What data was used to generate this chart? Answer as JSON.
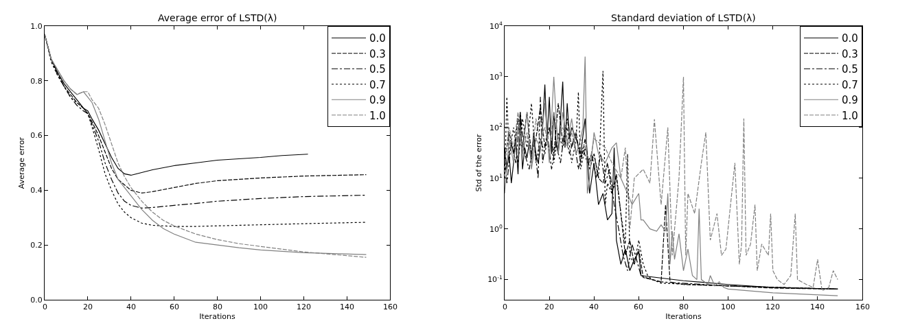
{
  "chart_data": [
    {
      "type": "line",
      "title": "Average error of LSTD(λ)",
      "xlabel": "Iterations",
      "ylabel": "Average error",
      "xlim": [
        0,
        160
      ],
      "xticks": [
        0,
        20,
        40,
        60,
        80,
        100,
        120,
        140,
        160
      ],
      "ylim": [
        0,
        1
      ],
      "yticks": [
        {
          "value": 0,
          "label": "0.0"
        },
        0.2,
        0.4,
        0.6,
        0.8,
        {
          "value": 1,
          "label": "1.0"
        }
      ],
      "grid": false,
      "legend": "top right",
      "series": [
        {
          "name": "0.0",
          "color": "#000000",
          "line_style": "solid",
          "x": [
            0,
            3,
            6,
            9,
            12,
            15,
            18,
            20,
            22,
            25,
            28,
            31,
            34,
            37,
            40,
            45,
            50,
            60,
            70,
            80,
            90,
            100,
            110,
            122
          ],
          "values": [
            0.97,
            0.88,
            0.83,
            0.79,
            0.76,
            0.73,
            0.7,
            0.69,
            0.66,
            0.62,
            0.57,
            0.52,
            0.48,
            0.46,
            0.455,
            0.465,
            0.475,
            0.49,
            0.5,
            0.51,
            0.515,
            0.52,
            0.527,
            0.532
          ]
        },
        {
          "name": "0.3",
          "color": "#000000",
          "line_style": "dashed",
          "x": [
            0,
            3,
            6,
            9,
            12,
            15,
            18,
            20,
            22,
            25,
            28,
            31,
            34,
            37,
            40,
            45,
            50,
            60,
            70,
            80,
            100,
            120,
            149
          ],
          "values": [
            0.97,
            0.88,
            0.83,
            0.78,
            0.75,
            0.72,
            0.7,
            0.68,
            0.65,
            0.6,
            0.54,
            0.48,
            0.44,
            0.42,
            0.4,
            0.39,
            0.395,
            0.41,
            0.425,
            0.435,
            0.445,
            0.452,
            0.457
          ]
        },
        {
          "name": "0.5",
          "color": "#000000",
          "line_style": "dashdot",
          "x": [
            0,
            3,
            6,
            9,
            12,
            15,
            18,
            20,
            22,
            25,
            28,
            31,
            34,
            37,
            40,
            45,
            50,
            60,
            70,
            80,
            100,
            120,
            149
          ],
          "values": [
            0.97,
            0.88,
            0.82,
            0.78,
            0.74,
            0.71,
            0.69,
            0.68,
            0.64,
            0.58,
            0.5,
            0.44,
            0.39,
            0.36,
            0.345,
            0.335,
            0.337,
            0.345,
            0.352,
            0.36,
            0.37,
            0.377,
            0.382
          ]
        },
        {
          "name": "0.7",
          "color": "#000000",
          "line_style": "dotted",
          "x": [
            0,
            3,
            6,
            9,
            12,
            15,
            18,
            20,
            22,
            25,
            28,
            31,
            34,
            37,
            40,
            45,
            50,
            60,
            70,
            80,
            100,
            120,
            149
          ],
          "values": [
            0.97,
            0.87,
            0.82,
            0.78,
            0.74,
            0.72,
            0.7,
            0.68,
            0.63,
            0.55,
            0.46,
            0.4,
            0.35,
            0.32,
            0.3,
            0.28,
            0.272,
            0.268,
            0.268,
            0.27,
            0.274,
            0.278,
            0.283
          ]
        },
        {
          "name": "0.9",
          "color": "#808080",
          "line_style": "solid",
          "x": [
            0,
            3,
            6,
            9,
            12,
            15,
            18,
            20,
            22,
            25,
            28,
            31,
            34,
            37,
            40,
            45,
            50,
            55,
            60,
            70,
            80,
            90,
            100,
            120,
            149
          ],
          "values": [
            0.97,
            0.88,
            0.84,
            0.8,
            0.77,
            0.75,
            0.76,
            0.74,
            0.72,
            0.66,
            0.58,
            0.5,
            0.44,
            0.41,
            0.38,
            0.33,
            0.29,
            0.26,
            0.24,
            0.21,
            0.2,
            0.19,
            0.182,
            0.172,
            0.165
          ]
        },
        {
          "name": "1.0",
          "color": "#808080",
          "line_style": "dashed",
          "x": [
            0,
            3,
            6,
            9,
            12,
            15,
            18,
            20,
            22,
            25,
            28,
            31,
            34,
            37,
            40,
            45,
            50,
            55,
            60,
            70,
            80,
            90,
            100,
            120,
            149
          ],
          "values": [
            0.97,
            0.88,
            0.84,
            0.8,
            0.77,
            0.75,
            0.76,
            0.76,
            0.73,
            0.7,
            0.64,
            0.57,
            0.5,
            0.45,
            0.41,
            0.36,
            0.32,
            0.29,
            0.27,
            0.24,
            0.22,
            0.205,
            0.195,
            0.175,
            0.155
          ]
        }
      ]
    },
    {
      "type": "line",
      "title": "Standard deviation of LSTD(λ)",
      "xlabel": "Iterations",
      "ylabel": "Std of the error",
      "log": "y",
      "xlim": [
        0,
        160
      ],
      "xticks": [
        0,
        20,
        40,
        60,
        80,
        100,
        120,
        140,
        160
      ],
      "ylim": [
        0.04,
        10000
      ],
      "yticks": [
        {
          "value": 0.1,
          "label": "10$^{-1}$"
        },
        {
          "value": 1,
          "label": "10$^{0}$"
        },
        {
          "value": 10,
          "label": "10$^{1}$"
        },
        {
          "value": 100,
          "label": "10$^{2}$"
        },
        {
          "value": 1000,
          "label": "10$^{3}$"
        },
        {
          "value": 10000,
          "label": "10$^{4}$"
        }
      ],
      "grid": false,
      "legend": "top right",
      "series": [
        {
          "name": "0.0",
          "color": "#000000",
          "line_style": "solid",
          "x": [
            0,
            1,
            2,
            3,
            4,
            5,
            6,
            7,
            8,
            9,
            10,
            11,
            12,
            13,
            14,
            15,
            16,
            17,
            18,
            19,
            20,
            21,
            22,
            23,
            24,
            25,
            26,
            27,
            28,
            29,
            30,
            32,
            34,
            36,
            38,
            40,
            42,
            44,
            46,
            48,
            49,
            50,
            52,
            54,
            56,
            58,
            60,
            61,
            80,
            100,
            120,
            149
          ],
          "values": [
            40,
            15,
            30,
            8,
            20,
            60,
            12,
            200,
            15,
            40,
            25,
            50,
            20,
            80,
            30,
            20,
            40,
            100,
            700,
            60,
            400,
            30,
            200,
            50,
            30,
            150,
            800,
            40,
            300,
            60,
            100,
            60,
            30,
            150,
            5,
            20,
            3,
            5,
            1.5,
            2,
            40,
            0.6,
            0.2,
            0.4,
            0.15,
            0.25,
            0.35,
            0.12,
            0.095,
            0.08,
            0.07,
            0.065
          ]
        },
        {
          "name": "0.3",
          "color": "#000000",
          "line_style": "dashed",
          "x": [
            0,
            2,
            4,
            6,
            8,
            10,
            12,
            14,
            16,
            18,
            20,
            22,
            24,
            26,
            28,
            30,
            32,
            34,
            36,
            38,
            40,
            42,
            44,
            46,
            48,
            50,
            52,
            54,
            56,
            58,
            60,
            62,
            66,
            70,
            72,
            73,
            74,
            76,
            80,
            100,
            120,
            149
          ],
          "values": [
            20,
            80,
            30,
            150,
            40,
            200,
            30,
            60,
            250,
            40,
            100,
            30,
            300,
            50,
            150,
            40,
            80,
            20,
            60,
            15,
            30,
            10,
            8,
            20,
            5,
            12,
            2,
            0.3,
            0.6,
            0.2,
            0.4,
            0.11,
            0.1,
            0.09,
            3,
            0.5,
            0.09,
            0.085,
            0.08,
            0.075,
            0.068,
            0.065
          ]
        },
        {
          "name": "0.5",
          "color": "#000000",
          "line_style": "dashdot",
          "x": [
            0,
            1,
            3,
            5,
            7,
            9,
            11,
            13,
            15,
            16,
            17,
            19,
            21,
            23,
            25,
            27,
            29,
            31,
            33,
            35,
            37,
            39,
            41,
            43,
            45,
            47,
            49,
            51,
            53,
            55,
            57,
            59,
            61,
            63,
            66,
            70,
            100,
            149
          ],
          "values": [
            30,
            8,
            50,
            20,
            200,
            30,
            15,
            60,
            10,
            400,
            20,
            80,
            15,
            50,
            20,
            100,
            30,
            60,
            15,
            40,
            20,
            30,
            10,
            30,
            8,
            15,
            3,
            1,
            0.3,
            0.15,
            0.5,
            0.25,
            0.12,
            0.11,
            0.1,
            0.09,
            0.075,
            0.065
          ]
        },
        {
          "name": "0.7",
          "color": "#000000",
          "line_style": "dotted",
          "x": [
            0,
            1,
            2,
            4,
            6,
            8,
            10,
            12,
            14,
            16,
            18,
            20,
            22,
            24,
            26,
            28,
            30,
            32,
            33,
            34,
            36,
            38,
            40,
            42,
            44,
            45,
            46,
            48,
            50,
            52,
            54,
            55,
            56,
            58,
            60,
            62,
            64,
            66,
            70,
            100,
            149
          ],
          "values": [
            10,
            400,
            30,
            100,
            20,
            150,
            40,
            300,
            20,
            60,
            30,
            100,
            20,
            80,
            40,
            100,
            20,
            60,
            500,
            15,
            40,
            20,
            30,
            10,
            1300,
            3,
            8,
            5,
            10,
            2,
            0.5,
            30,
            0.3,
            0.2,
            0.6,
            0.2,
            0.12,
            0.1,
            0.085,
            0.075,
            0.065
          ]
        },
        {
          "name": "0.9",
          "color": "#808080",
          "line_style": "solid",
          "x": [
            0,
            2,
            4,
            6,
            8,
            10,
            12,
            14,
            16,
            18,
            20,
            22,
            24,
            26,
            28,
            30,
            32,
            34,
            35,
            36,
            37,
            38,
            40,
            42,
            45,
            48,
            50,
            52,
            55,
            57,
            60,
            61,
            62,
            65,
            68,
            70,
            72,
            73,
            74,
            75,
            76,
            78,
            80,
            82,
            84,
            86,
            87,
            88,
            91,
            92,
            94,
            96,
            98,
            100,
            120,
            149
          ],
          "values": [
            5,
            60,
            20,
            100,
            30,
            200,
            15,
            60,
            40,
            300,
            20,
            1000,
            30,
            200,
            50,
            150,
            30,
            60,
            100,
            2500,
            5,
            10,
            80,
            30,
            20,
            40,
            50,
            10,
            5,
            3,
            5,
            1.5,
            1.5,
            1,
            0.9,
            1.2,
            0.9,
            5,
            0.2,
            0.9,
            0.25,
            0.8,
            0.15,
            0.4,
            0.12,
            0.1,
            2.5,
            0.1,
            0.08,
            0.12,
            0.075,
            0.09,
            0.07,
            0.065,
            0.055,
            0.048
          ]
        },
        {
          "name": "1.0",
          "color": "#808080",
          "line_style": "dashed",
          "x": [
            0,
            2,
            4,
            6,
            8,
            10,
            12,
            14,
            16,
            18,
            20,
            22,
            24,
            26,
            28,
            30,
            32,
            34,
            36,
            38,
            40,
            45,
            48,
            52,
            54,
            56,
            58,
            62,
            65,
            67,
            70,
            73,
            75,
            78,
            80,
            81,
            82,
            85,
            88,
            90,
            92,
            95,
            97,
            99,
            103,
            105,
            106,
            107,
            108,
            110,
            112,
            113,
            115,
            118,
            119,
            120,
            122,
            125,
            128,
            130,
            131,
            135,
            138,
            140,
            142,
            145,
            147,
            149
          ],
          "values": [
            20,
            100,
            40,
            200,
            30,
            80,
            20,
            150,
            50,
            100,
            30,
            200,
            60,
            100,
            40,
            80,
            30,
            60,
            40,
            20,
            60,
            40,
            20,
            10,
            40,
            1,
            10,
            15,
            8,
            145,
            3,
            100,
            0.3,
            10,
            1000,
            0.3,
            5,
            2,
            20,
            80,
            0.6,
            2,
            0.3,
            0.4,
            20,
            0.2,
            0.5,
            150,
            0.3,
            0.5,
            3,
            0.15,
            0.5,
            0.3,
            2,
            0.15,
            0.1,
            0.08,
            0.12,
            2,
            0.1,
            0.08,
            0.07,
            0.25,
            0.06,
            0.07,
            0.15,
            0.1
          ]
        }
      ]
    }
  ]
}
